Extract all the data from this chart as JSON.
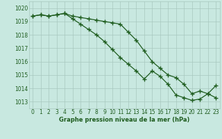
{
  "line1_x": [
    0,
    1,
    2,
    3,
    4,
    5,
    6,
    7,
    8,
    9,
    10,
    11,
    12,
    13,
    14,
    15,
    16,
    17,
    18,
    19,
    20,
    21,
    22,
    23
  ],
  "line1_y": [
    1019.4,
    1019.5,
    1019.4,
    1019.5,
    1019.6,
    1019.4,
    1019.3,
    1019.2,
    1019.1,
    1019.0,
    1018.9,
    1018.8,
    1018.2,
    1017.6,
    1016.8,
    1016.0,
    1015.5,
    1015.0,
    1014.8,
    1014.3,
    1013.6,
    1013.8,
    1013.6,
    1014.2
  ],
  "line2_x": [
    0,
    1,
    2,
    3,
    4,
    5,
    6,
    7,
    8,
    9,
    10,
    11,
    12,
    13,
    14,
    15,
    16,
    17,
    18,
    19,
    20,
    21,
    22,
    23
  ],
  "line2_y": [
    1019.4,
    1019.5,
    1019.4,
    1019.5,
    1019.6,
    1019.2,
    1018.8,
    1018.4,
    1018.0,
    1017.5,
    1016.9,
    1016.3,
    1015.8,
    1015.3,
    1014.7,
    1015.3,
    1014.9,
    1014.3,
    1013.5,
    1013.3,
    1013.1,
    1013.2,
    1013.6,
    1013.3
  ],
  "ylim": [
    1012.5,
    1020.5
  ],
  "yticks": [
    1013,
    1014,
    1015,
    1016,
    1017,
    1018,
    1019,
    1020
  ],
  "xticks": [
    0,
    1,
    2,
    3,
    4,
    5,
    6,
    7,
    8,
    9,
    10,
    11,
    12,
    13,
    14,
    15,
    16,
    17,
    18,
    19,
    20,
    21,
    22,
    23
  ],
  "xlabel": "Graphe pression niveau de la mer (hPa)",
  "line_color": "#1e5c1e",
  "bg_color": "#c8e8e0",
  "grid_color": "#a8c8be",
  "marker": "+",
  "marker_size": 4,
  "linewidth": 0.9,
  "tick_fontsize": 5.5,
  "xlabel_fontsize": 6.0
}
